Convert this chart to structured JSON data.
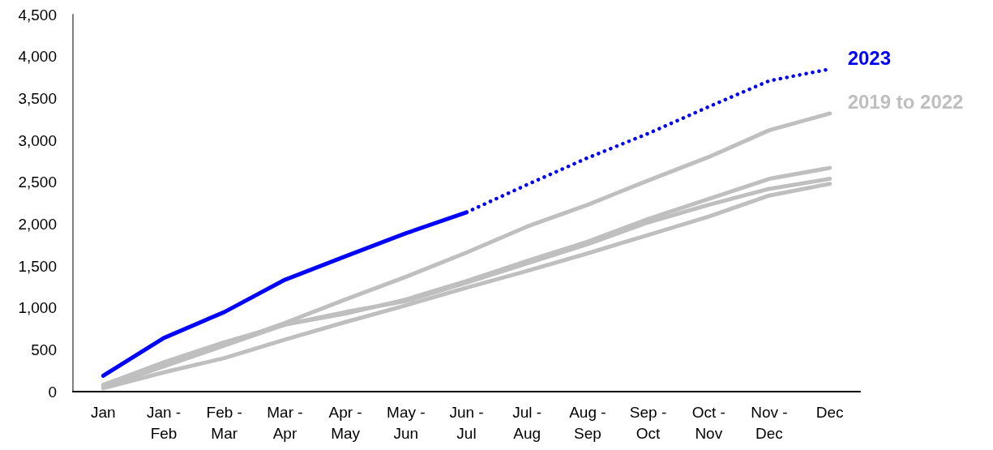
{
  "chart_data": {
    "type": "line",
    "categories": [
      "Jan",
      "Jan -\nFeb",
      "Feb -\nMar",
      "Mar -\nApr",
      "Apr -\nMay",
      "May -\nJun",
      "Jun -\nJul",
      "Jul -\nAug",
      "Aug -\nSep",
      "Sep -\nOct",
      "Oct -\nNov",
      "Nov -\nDec",
      "Dec"
    ],
    "ylim": [
      0,
      4500
    ],
    "yticks": [
      {
        "value": 0,
        "label": "0"
      },
      {
        "value": 500,
        "label": "500"
      },
      {
        "value": 1000,
        "label": "1,000"
      },
      {
        "value": 1500,
        "label": "1,500"
      },
      {
        "value": 2000,
        "label": "2,000"
      },
      {
        "value": 2500,
        "label": "2,500"
      },
      {
        "value": 3000,
        "label": "3,000"
      },
      {
        "value": 3500,
        "label": "3,500"
      },
      {
        "value": 4000,
        "label": "4,000"
      },
      {
        "value": 4500,
        "label": "4,500"
      }
    ],
    "grid": false,
    "legend": false,
    "marker": "none",
    "series": [
      {
        "name": "2019 to 2022",
        "color": "#bfbfbf",
        "values": [
          80,
          330,
          560,
          820,
          1100,
          1370,
          1660,
          1970,
          2230,
          2520,
          2800,
          3120,
          3320
        ]
      },
      {
        "color": "#bfbfbf",
        "values": [
          80,
          350,
          590,
          800,
          930,
          1100,
          1320,
          1560,
          1790,
          2060,
          2300,
          2540,
          2670
        ]
      },
      {
        "color": "#bfbfbf",
        "values": [
          50,
          300,
          550,
          800,
          950,
          1080,
          1300,
          1530,
          1760,
          2020,
          2230,
          2420,
          2540
        ]
      },
      {
        "color": "#bfbfbf",
        "values": [
          40,
          230,
          400,
          620,
          830,
          1030,
          1240,
          1440,
          1650,
          1870,
          2090,
          2340,
          2480
        ]
      },
      {
        "name": "2023",
        "color": "#0000ff",
        "line_style": "solid",
        "values": [
          190,
          640,
          950,
          1335,
          1615,
          1890,
          2140,
          null,
          null,
          null,
          null,
          null,
          null
        ]
      },
      {
        "color": "#0000ff",
        "line_style": "dotted",
        "values": [
          null,
          null,
          null,
          null,
          null,
          null,
          2140,
          2470,
          2790,
          3080,
          3400,
          3710,
          3850
        ]
      }
    ]
  }
}
